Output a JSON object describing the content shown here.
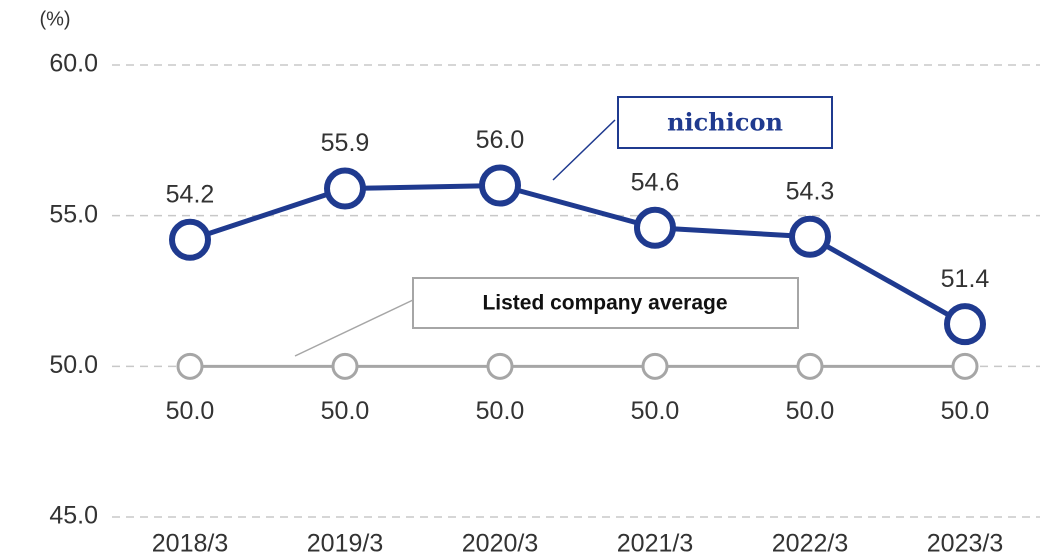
{
  "chart_data": {
    "type": "line",
    "y_unit_label": "(%)",
    "categories": [
      "2018/3",
      "2019/3",
      "2020/3",
      "2021/3",
      "2022/3",
      "2023/3"
    ],
    "series": [
      {
        "name": "nichicon",
        "color": "#1f3a8f",
        "values": [
          54.2,
          55.9,
          56.0,
          54.6,
          54.3,
          51.4
        ],
        "value_labels": [
          "54.2",
          "55.9",
          "56.0",
          "54.6",
          "54.3",
          "51.4"
        ]
      },
      {
        "name": "Listed company average",
        "color": "#a6a6a6",
        "values": [
          50.0,
          50.0,
          50.0,
          50.0,
          50.0,
          50.0
        ],
        "value_labels": [
          "50.0",
          "50.0",
          "50.0",
          "50.0",
          "50.0",
          "50.0"
        ]
      }
    ],
    "ylim": [
      45,
      60
    ],
    "yticks": [
      {
        "value": 45,
        "label": "45.0"
      },
      {
        "value": 50,
        "label": "50.0"
      },
      {
        "value": 55,
        "label": "55.0"
      },
      {
        "value": 60,
        "label": "60.0"
      }
    ],
    "grid": true
  }
}
